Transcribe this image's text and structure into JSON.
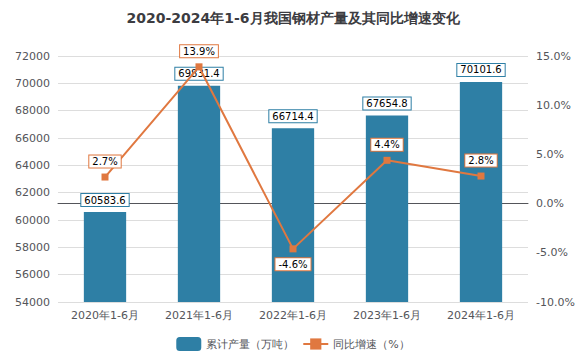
{
  "chart_data": {
    "type": "bar",
    "title": "2020-2024年1-6月我国钢材产量及其同比增速变化",
    "categories": [
      "2020年1-6月",
      "2021年1-6月",
      "2022年1-6月",
      "2023年1-6月",
      "2024年1-6月"
    ],
    "series": [
      {
        "name": "累计产量（万吨）",
        "type": "bar",
        "color": "#2e7fa5",
        "values": [
          60583.6,
          69831.4,
          66714.4,
          67654.8,
          70101.6
        ]
      },
      {
        "name": "同比增速（%）",
        "type": "line",
        "axis": "y2",
        "color": "#e07840",
        "marker": "square",
        "values": [
          2.7,
          13.9,
          -4.6,
          4.4,
          2.8
        ],
        "value_labels": [
          "2.7%",
          "13.9%",
          "-4.6%",
          "4.4%",
          "2.8%"
        ]
      }
    ],
    "ylim": [
      54000,
      72000
    ],
    "yticks": [
      54000,
      56000,
      58000,
      60000,
      62000,
      64000,
      66000,
      68000,
      70000,
      72000
    ],
    "y2lim": [
      -10.0,
      15.0
    ],
    "y2ticks": [
      {
        "value": -10.0,
        "label": "-10.0%"
      },
      {
        "value": -5.0,
        "label": "-5.0%"
      },
      {
        "value": 0.0,
        "label": "0.0%"
      },
      {
        "value": 5.0,
        "label": "5.0%"
      },
      {
        "value": 10.0,
        "label": "10.0%"
      },
      {
        "value": 15.0,
        "label": "15.0%"
      }
    ],
    "data_labels": true,
    "grid": true,
    "legend": "bottom"
  }
}
